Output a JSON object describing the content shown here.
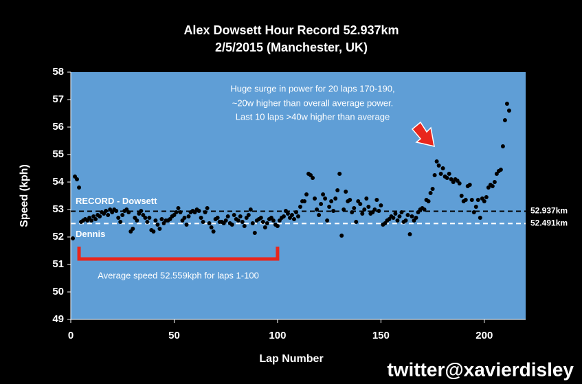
{
  "chart_data": {
    "type": "scatter",
    "title": [
      "Alex Dowsett Hour Record 52.937km",
      "2/5/2015 (Manchester, UK)"
    ],
    "x_label": "Lap Number",
    "y_label": "Speed (kph)",
    "xlim": [
      0,
      220
    ],
    "ylim": [
      49,
      58
    ],
    "xticks": [
      0,
      50,
      100,
      150,
      200
    ],
    "yticks": [
      49,
      50,
      51,
      52,
      53,
      54,
      55,
      56,
      57,
      58
    ],
    "grid": false,
    "background": "#000000",
    "plot_background": "#5f9ed6",
    "x": [
      1,
      2,
      3,
      4,
      5,
      6,
      7,
      8,
      9,
      10,
      11,
      12,
      13,
      14,
      15,
      16,
      17,
      18,
      19,
      20,
      21,
      22,
      23,
      24,
      25,
      26,
      27,
      28,
      29,
      30,
      31,
      32,
      33,
      34,
      35,
      36,
      37,
      38,
      39,
      40,
      41,
      42,
      43,
      44,
      45,
      46,
      47,
      48,
      49,
      50,
      51,
      52,
      53,
      54,
      55,
      56,
      57,
      58,
      59,
      60,
      61,
      62,
      63,
      64,
      65,
      66,
      67,
      68,
      69,
      70,
      71,
      72,
      73,
      74,
      75,
      76,
      77,
      78,
      79,
      80,
      81,
      82,
      83,
      84,
      85,
      86,
      87,
      88,
      89,
      90,
      91,
      92,
      93,
      94,
      95,
      96,
      97,
      98,
      99,
      100,
      101,
      102,
      103,
      104,
      105,
      106,
      107,
      108,
      109,
      110,
      111,
      112,
      113,
      114,
      115,
      116,
      117,
      118,
      119,
      120,
      121,
      122,
      123,
      124,
      125,
      126,
      127,
      128,
      129,
      130,
      131,
      132,
      133,
      134,
      135,
      136,
      137,
      138,
      139,
      140,
      141,
      142,
      143,
      144,
      145,
      146,
      147,
      148,
      149,
      150,
      151,
      152,
      153,
      154,
      155,
      156,
      157,
      158,
      159,
      160,
      161,
      162,
      163,
      164,
      165,
      166,
      167,
      168,
      169,
      170,
      171,
      172,
      173,
      174,
      175,
      176,
      177,
      178,
      179,
      180,
      181,
      182,
      183,
      184,
      185,
      186,
      187,
      188,
      189,
      190,
      191,
      192,
      193,
      194,
      195,
      196,
      197,
      198,
      199,
      200,
      201,
      202,
      203,
      204,
      205,
      206,
      207,
      208,
      209,
      210,
      211,
      212
    ],
    "series": [
      {
        "color": "#000000",
        "values": [
          51.95,
          54.2,
          54.1,
          53.8,
          52.55,
          52.6,
          52.65,
          52.6,
          52.7,
          52.6,
          52.75,
          52.65,
          52.8,
          52.75,
          52.9,
          52.85,
          52.95,
          52.8,
          53.0,
          52.9,
          53.0,
          52.95,
          52.7,
          52.55,
          52.8,
          52.95,
          53.0,
          52.9,
          52.2,
          52.3,
          52.7,
          52.6,
          52.85,
          52.95,
          52.8,
          52.7,
          52.55,
          52.7,
          52.25,
          52.2,
          52.6,
          52.45,
          52.3,
          52.65,
          52.5,
          52.6,
          52.6,
          52.65,
          52.75,
          52.8,
          52.9,
          53.05,
          52.9,
          52.6,
          52.7,
          52.45,
          52.75,
          52.9,
          52.95,
          52.9,
          53.0,
          52.95,
          52.7,
          52.55,
          52.9,
          53.05,
          52.5,
          52.35,
          52.2,
          52.65,
          52.7,
          52.55,
          52.55,
          52.5,
          52.6,
          52.75,
          52.5,
          52.45,
          52.8,
          52.65,
          52.6,
          52.75,
          52.55,
          52.4,
          52.7,
          52.8,
          53.0,
          52.5,
          52.15,
          52.6,
          52.65,
          52.7,
          52.55,
          52.35,
          52.5,
          52.65,
          52.7,
          52.6,
          52.45,
          52.4,
          52.6,
          52.7,
          52.75,
          52.95,
          52.85,
          52.7,
          52.8,
          52.65,
          52.9,
          52.75,
          53.1,
          53.3,
          53.3,
          53.55,
          54.3,
          54.25,
          54.15,
          53.4,
          53.0,
          52.8,
          53.2,
          53.55,
          53.4,
          52.6,
          53.1,
          53.3,
          52.95,
          53.4,
          53.7,
          54.3,
          52.05,
          53.0,
          53.65,
          53.3,
          53.35,
          52.9,
          53.05,
          52.55,
          53.3,
          53.2,
          52.85,
          53.0,
          53.4,
          53.1,
          52.85,
          52.9,
          53.0,
          53.35,
          52.95,
          53.15,
          52.45,
          52.5,
          52.6,
          52.65,
          52.75,
          52.7,
          52.85,
          52.6,
          52.75,
          52.9,
          52.55,
          52.6,
          52.8,
          52.1,
          52.75,
          52.6,
          52.7,
          52.9,
          53.0,
          53.05,
          53.0,
          53.35,
          53.3,
          53.6,
          53.75,
          54.25,
          54.75,
          54.6,
          54.3,
          54.5,
          54.2,
          54.15,
          54.3,
          54.1,
          54.0,
          54.1,
          54.05,
          53.95,
          53.5,
          53.3,
          53.35,
          53.85,
          53.9,
          53.35,
          52.9,
          53.1,
          53.35,
          52.7,
          53.4,
          53.3,
          53.45,
          53.8,
          53.9,
          53.85,
          54.0,
          54.3,
          54.4,
          54.45,
          55.3,
          56.25,
          56.85,
          56.6
        ]
      }
    ],
    "reference_lines": [
      {
        "value": 52.937,
        "label": "52.937km",
        "name": "RECORD - Dowsett",
        "color": "#000000"
      },
      {
        "value": 52.491,
        "label": "52.491km",
        "name": "Dennis",
        "color": "#ffffff"
      }
    ],
    "bracket": {
      "x": [
        4,
        100
      ],
      "color": "#e8261c",
      "label": "Average speed 52.559kph for laps 1-100"
    },
    "annotation": [
      "Huge surge in power for 20 laps 170-190,",
      "~20w higher than overall average power.",
      "Last 10 laps >40w higher than average"
    ],
    "watermark": "twitter@xavierdisley"
  }
}
